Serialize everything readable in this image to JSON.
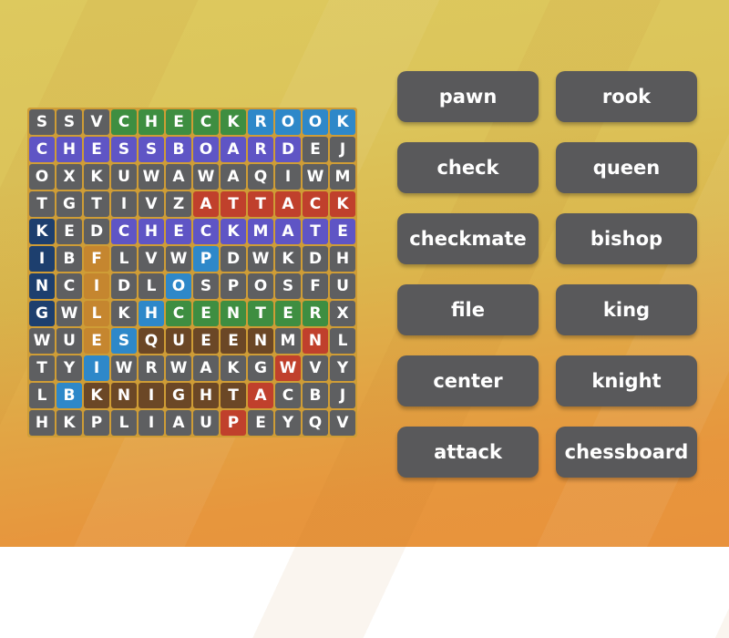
{
  "app": "wordsearch-game",
  "background": {
    "top_color": "#ddc95e",
    "bottom_color": "#e8923c",
    "grid_line_color": "#cf9d36"
  },
  "palette": {
    ".": "#5e5f61",
    "G": "#3e8e41",
    "B": "#2e88c9",
    "P": "#5f55c5",
    "R": "#c0402c",
    "K": "#1d3f6e",
    "O": "#c5862f",
    "Q": "#6b4726"
  },
  "palette_legend": {
    ".": "unfound-gray",
    "G": "green-highlight (check, center)",
    "B": "blue-highlight (rook, bishop)",
    "P": "purple-highlight (chessboard, checkmate)",
    "R": "red-highlight (attack, pawn)",
    "K": "navy-highlight (king)",
    "O": "orange-highlight (file)",
    "Q": "brown-highlight (queen, knight)"
  },
  "grid": {
    "rows": [
      "SSVCHECKROOK",
      "CHESSBOARDEJ",
      "OXKUWAWAQIWM",
      "TGTIVZATTACK",
      "KEDCHECKMATE",
      "IBFLVWPDWKDH",
      "NCIDLOSPOSFU",
      "GWLKHCENTERX",
      "WUESQUEENMNL",
      "TYIWRWAKGWVY",
      "LBKNIGHTACBJ",
      "HKPLIAUPEYQV"
    ],
    "colors": [
      "...GGGGGBBBB",
      "PPPPPPPPPP..",
      "............",
      "......RRRRRR",
      "K..PPPPPPPPP",
      "K.O...B.....",
      "K.O..B......",
      "K.O.BGGGGGG.",
      "..OBQQQQQ.R.",
      "..B......R..",
      ".BQQQQQQR...",
      ".......R...."
    ]
  },
  "words": {
    "left_column": [
      "pawn",
      "check",
      "checkmate",
      "file",
      "center",
      "attack"
    ],
    "right_column": [
      "rook",
      "queen",
      "bishop",
      "king",
      "knight",
      "chessboard"
    ]
  },
  "button": {
    "background": "#59595b",
    "text_color": "#ffffff"
  }
}
